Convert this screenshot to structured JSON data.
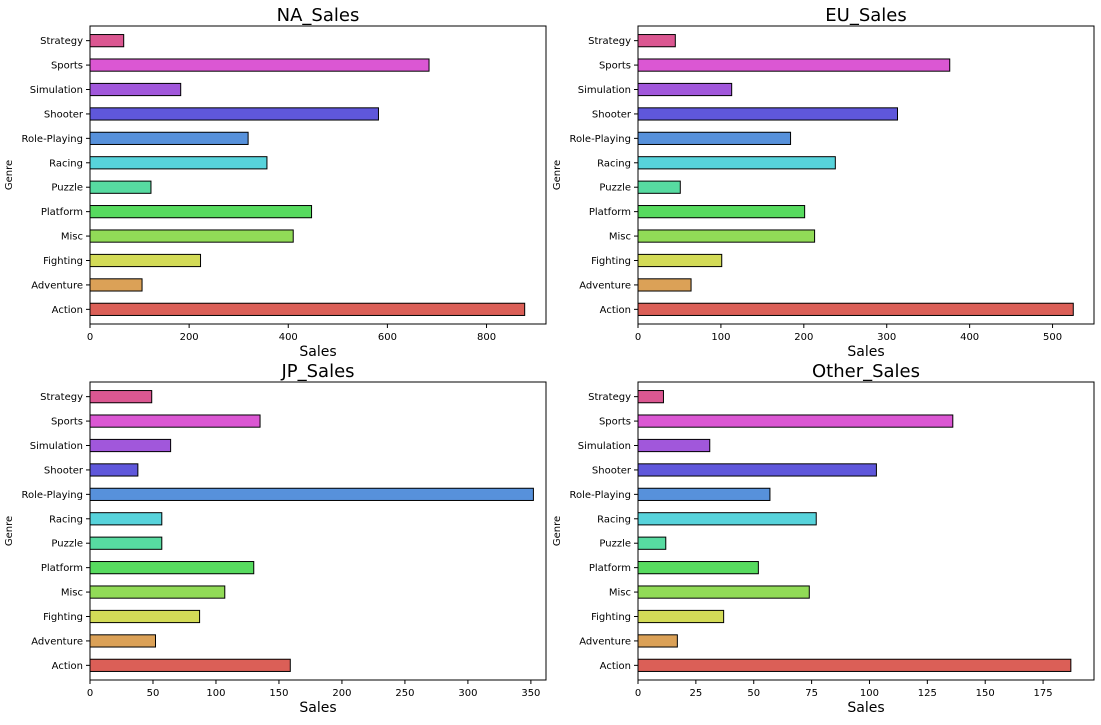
{
  "chart_data": [
    {
      "type": "bar",
      "orientation": "horizontal",
      "title": "NA_Sales",
      "xlabel": "Sales",
      "ylabel": "Genre",
      "xlim": [
        0,
        920
      ],
      "xticks": [
        0,
        200,
        400,
        600,
        800
      ],
      "categories": [
        "Action",
        "Adventure",
        "Fighting",
        "Misc",
        "Platform",
        "Puzzle",
        "Racing",
        "Role-Playing",
        "Shooter",
        "Simulation",
        "Sports",
        "Strategy"
      ],
      "values": [
        877,
        105,
        223,
        410,
        447,
        123,
        357,
        319,
        582,
        183,
        684,
        68
      ],
      "grid": false
    },
    {
      "type": "bar",
      "orientation": "horizontal",
      "title": "EU_Sales",
      "xlabel": "Sales",
      "ylabel": "Genre",
      "xlim": [
        0,
        550
      ],
      "xticks": [
        0,
        100,
        200,
        300,
        400,
        500
      ],
      "categories": [
        "Action",
        "Adventure",
        "Fighting",
        "Misc",
        "Platform",
        "Puzzle",
        "Racing",
        "Role-Playing",
        "Shooter",
        "Simulation",
        "Sports",
        "Strategy"
      ],
      "values": [
        525,
        64,
        101,
        213,
        201,
        51,
        238,
        184,
        313,
        113,
        376,
        45
      ],
      "grid": false
    },
    {
      "type": "bar",
      "orientation": "horizontal",
      "title": "JP_Sales",
      "xlabel": "Sales",
      "ylabel": "Genre",
      "xlim": [
        0,
        362
      ],
      "xticks": [
        0,
        50,
        100,
        150,
        200,
        250,
        300,
        350
      ],
      "categories": [
        "Action",
        "Adventure",
        "Fighting",
        "Misc",
        "Platform",
        "Puzzle",
        "Racing",
        "Role-Playing",
        "Shooter",
        "Simulation",
        "Sports",
        "Strategy"
      ],
      "values": [
        159,
        52,
        87,
        107,
        130,
        57,
        57,
        352,
        38,
        64,
        135,
        49
      ],
      "grid": false
    },
    {
      "type": "bar",
      "orientation": "horizontal",
      "title": "Other_Sales",
      "xlabel": "Sales",
      "ylabel": "Genre",
      "xlim": [
        0,
        197
      ],
      "xticks": [
        0,
        25,
        50,
        75,
        100,
        125,
        150,
        175
      ],
      "categories": [
        "Action",
        "Adventure",
        "Fighting",
        "Misc",
        "Platform",
        "Puzzle",
        "Racing",
        "Role-Playing",
        "Shooter",
        "Simulation",
        "Sports",
        "Strategy"
      ],
      "values": [
        187,
        17,
        37,
        74,
        52,
        12,
        77,
        57,
        103,
        31,
        136,
        11
      ],
      "grid": false
    }
  ],
  "colors": {
    "bars": [
      "#db5f57",
      "#dba157",
      "#d3db57",
      "#91db57",
      "#57db5f",
      "#57dba1",
      "#57d3db",
      "#5791db",
      "#5f57db",
      "#a157db",
      "#db57d3",
      "#db5791"
    ],
    "edge": "#000000",
    "axes": "#000000",
    "background": "#ffffff"
  }
}
